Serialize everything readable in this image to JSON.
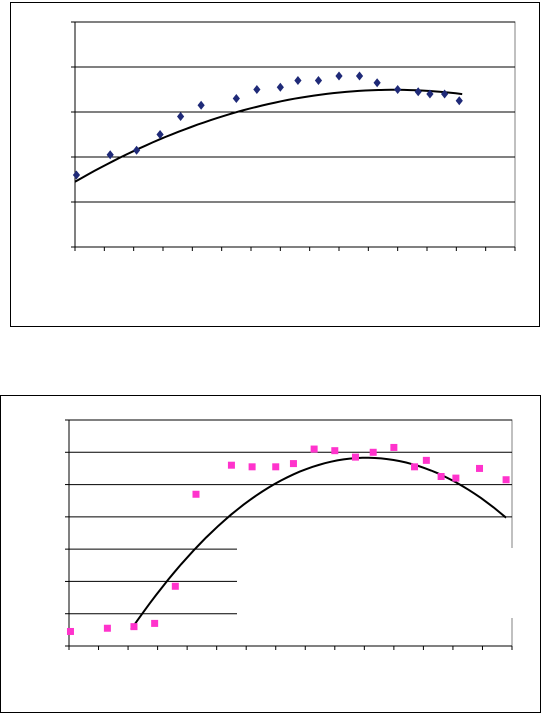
{
  "chart_data": [
    {
      "type": "scatter",
      "marker": "diamond",
      "marker_color": "#1f2a78",
      "trendline": "polynomial",
      "grid": true,
      "x_tick_count": 15,
      "xlim": [
        0,
        15
      ],
      "ylim": [
        0,
        5
      ],
      "series": [
        {
          "points": [
            [
              0.05,
              1.6
            ],
            [
              1.2,
              2.05
            ],
            [
              2.1,
              2.15
            ],
            [
              2.9,
              2.5
            ],
            [
              3.6,
              2.9
            ],
            [
              4.3,
              3.15
            ],
            [
              5.5,
              3.3
            ],
            [
              6.2,
              3.5
            ],
            [
              7.0,
              3.55
            ],
            [
              7.6,
              3.7
            ],
            [
              8.3,
              3.7
            ],
            [
              9.0,
              3.8
            ],
            [
              9.7,
              3.8
            ],
            [
              10.3,
              3.65
            ],
            [
              11.0,
              3.5
            ],
            [
              11.7,
              3.45
            ],
            [
              12.1,
              3.4
            ],
            [
              12.6,
              3.4
            ],
            [
              13.1,
              3.25
            ]
          ]
        }
      ],
      "trend_poly": [
        1.45,
        0.376,
        -0.0173
      ],
      "trend_range": [
        0,
        13.2
      ]
    },
    {
      "type": "scatter",
      "marker": "square",
      "marker_color": "#ff33cc",
      "trendline": "polynomial",
      "grid": true,
      "x_tick_count": 15,
      "xlim": [
        0,
        15
      ],
      "ylim": [
        0,
        7
      ],
      "series": [
        {
          "points": [
            [
              0.05,
              0.45
            ],
            [
              1.3,
              0.55
            ],
            [
              2.2,
              0.6
            ],
            [
              2.9,
              0.7
            ],
            [
              3.6,
              1.85
            ],
            [
              4.3,
              4.7
            ],
            [
              5.5,
              5.6
            ],
            [
              6.2,
              5.55
            ],
            [
              7.0,
              5.55
            ],
            [
              7.6,
              5.65
            ],
            [
              8.3,
              6.1
            ],
            [
              9.0,
              6.05
            ],
            [
              9.7,
              5.85
            ],
            [
              10.3,
              6.0
            ],
            [
              11.0,
              6.15
            ],
            [
              11.7,
              5.55
            ],
            [
              12.1,
              5.75
            ],
            [
              12.6,
              5.25
            ],
            [
              13.1,
              5.2
            ],
            [
              13.9,
              5.5
            ],
            [
              14.8,
              5.15
            ]
          ]
        }
      ],
      "trend_poly": [
        -2.66,
        1.684,
        -0.0835
      ],
      "trend_range": [
        2.1,
        14.8
      ]
    }
  ]
}
